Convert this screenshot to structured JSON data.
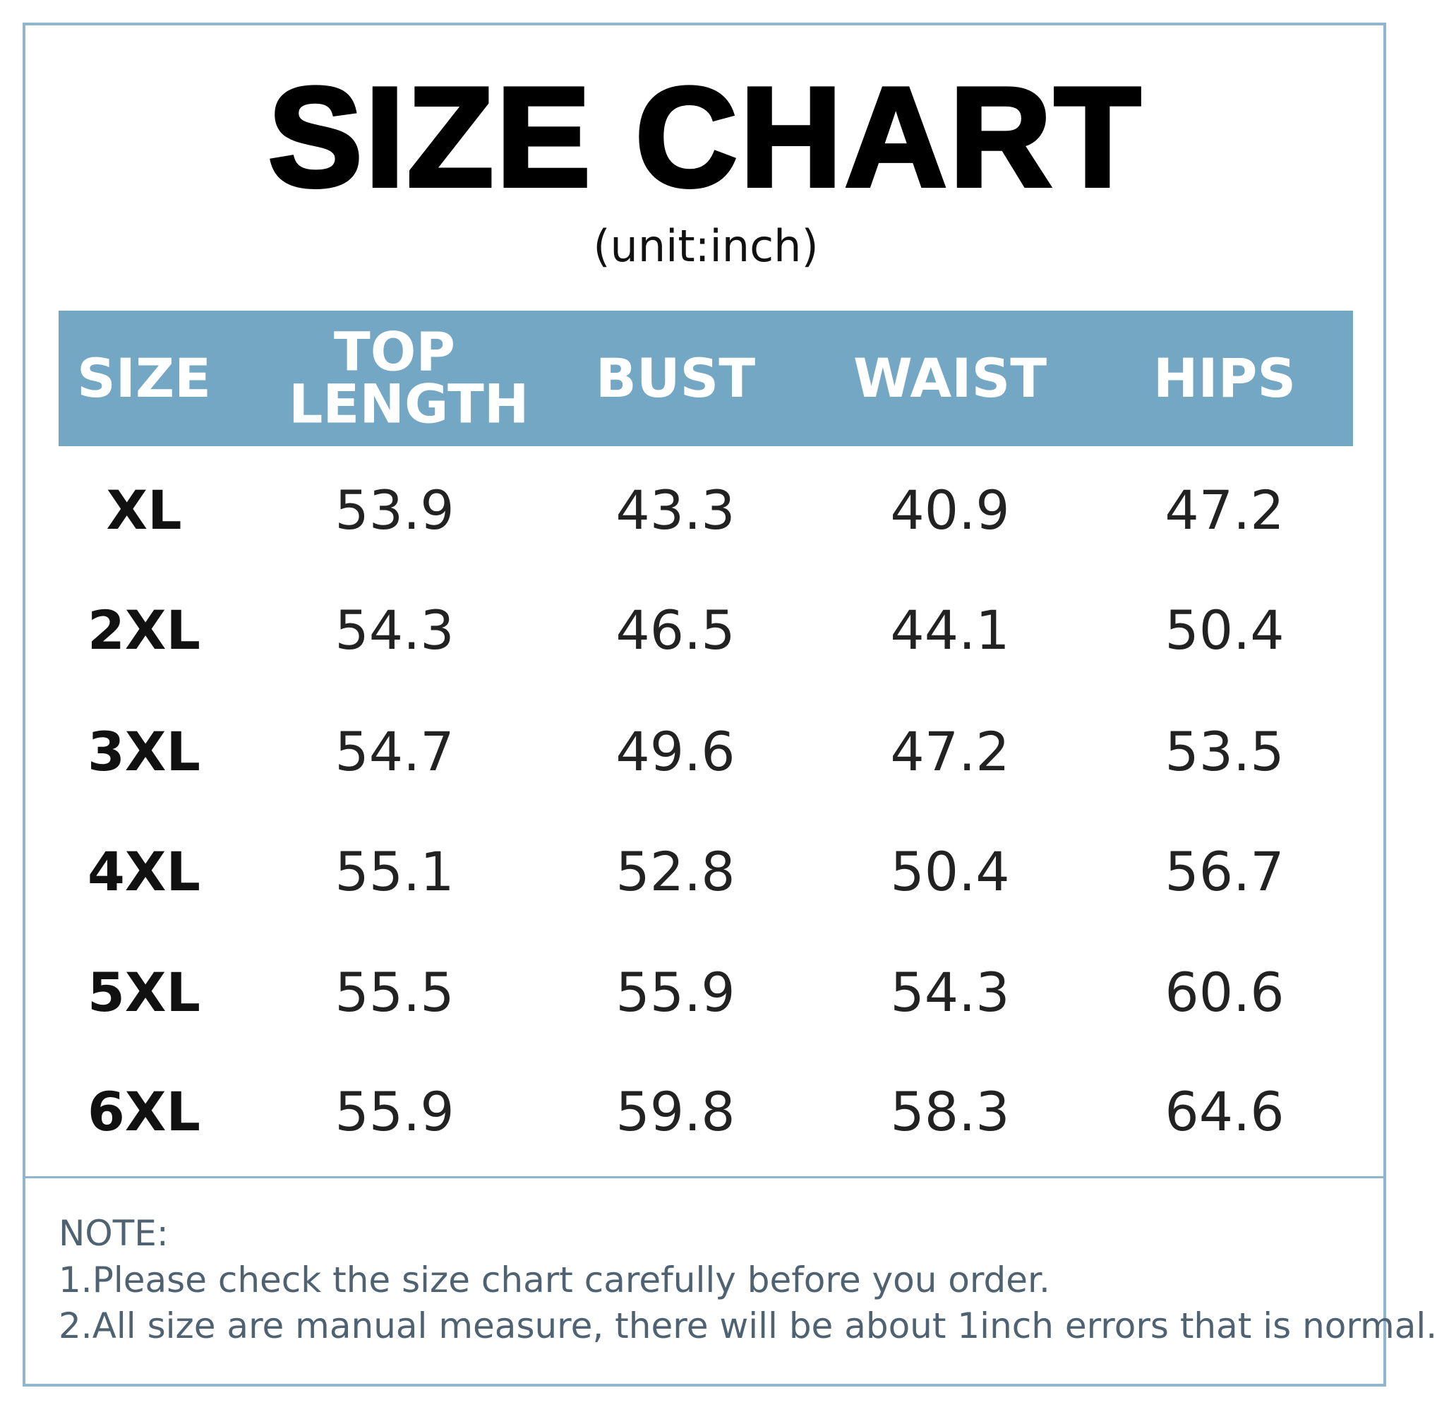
{
  "header": {
    "title": "SIZE CHART",
    "subtitle": "(unit:inch)"
  },
  "table": {
    "columns": [
      "SIZE",
      "TOP LENGTH",
      "BUST",
      "WAIST",
      "HIPS"
    ],
    "rows": [
      [
        "XL",
        53.9,
        43.3,
        40.9,
        47.2
      ],
      [
        "2XL",
        54.3,
        46.5,
        44.1,
        50.4
      ],
      [
        "3XL",
        54.7,
        49.6,
        47.2,
        53.5
      ],
      [
        "4XL",
        55.1,
        52.8,
        50.4,
        56.7
      ],
      [
        "5XL",
        55.5,
        55.9,
        54.3,
        60.6
      ],
      [
        "6XL",
        55.9,
        59.8,
        58.3,
        64.6
      ]
    ]
  },
  "notes": [
    "NOTE:",
    "1.Please check the size chart carefully before you order.",
    "2.All size are manual measure, there will be about 1inch errors that is normal."
  ]
}
